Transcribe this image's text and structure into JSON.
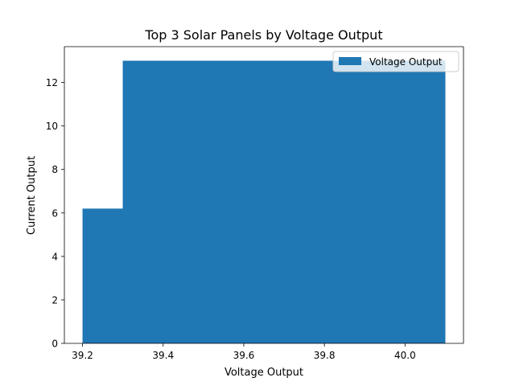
{
  "chart_data": {
    "type": "bar",
    "title": "Top 3 Solar Panels by Voltage Output",
    "xlabel": "Voltage Output",
    "ylabel": "Current Output",
    "xlim": [
      39.155,
      40.145
    ],
    "ylim": [
      0,
      13.65
    ],
    "x_ticks": [
      "39.2",
      "39.4",
      "39.6",
      "39.8",
      "40.0"
    ],
    "x_tick_values": [
      39.2,
      39.4,
      39.6,
      39.8,
      40.0
    ],
    "y_ticks": [
      "0",
      "2",
      "4",
      "6",
      "8",
      "10",
      "12"
    ],
    "y_tick_values": [
      0,
      2,
      4,
      6,
      8,
      10,
      12
    ],
    "series": [
      {
        "name": "Voltage Output",
        "color": "#1f77b4",
        "bars": [
          {
            "x": 39.2,
            "width": 0.8,
            "value": 6.2
          },
          {
            "x": 39.3,
            "width": 0.8,
            "value": 13.0
          },
          {
            "x": 39.3,
            "width": 0.8,
            "value": 13.0
          }
        ]
      }
    ],
    "legend": {
      "placement": "top-right",
      "entries": [
        "Voltage Output"
      ]
    },
    "grid": false
  }
}
